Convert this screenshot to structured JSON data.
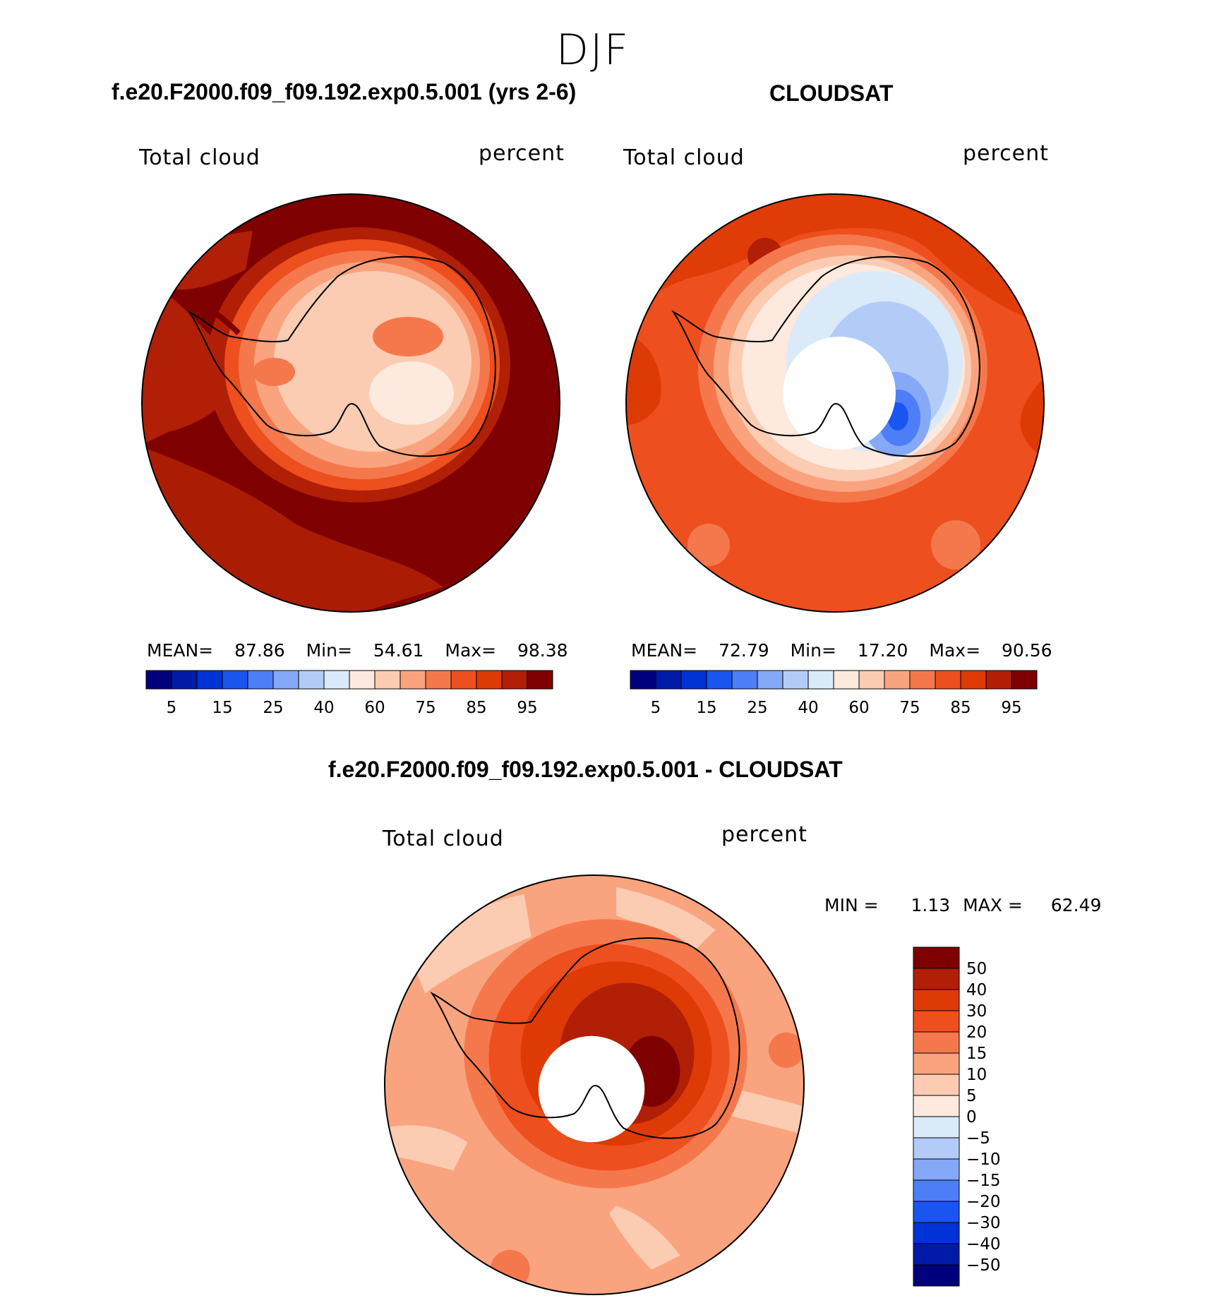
{
  "season": "DJF",
  "panels": [
    {
      "title": "f.e20.F2000.f09_f09.192.exp0.5.001 (yrs 2-6)",
      "variable": "Total cloud",
      "units": "percent",
      "stats": {
        "mean_label": "MEAN=",
        "mean": "87.86",
        "min_label": "Min=",
        "min": "54.61",
        "max_label": "Max=",
        "max": "98.38"
      },
      "colorbar_labels": [
        "5",
        "15",
        "25",
        "40",
        "60",
        "75",
        "85",
        "95"
      ]
    },
    {
      "title": "CLOUDSAT",
      "variable": "Total cloud",
      "units": "percent",
      "stats": {
        "mean_label": "MEAN=",
        "mean": "72.79",
        "min_label": "Min=",
        "min": "17.20",
        "max_label": "Max=",
        "max": "90.56"
      },
      "colorbar_labels": [
        "5",
        "15",
        "25",
        "40",
        "60",
        "75",
        "85",
        "95"
      ]
    }
  ],
  "difference": {
    "title": "f.e20.F2000.f09_f09.192.exp0.5.001 - CLOUDSAT",
    "variable": "Total cloud",
    "units": "percent",
    "stats": {
      "min_label": "MIN =",
      "min": "1.13",
      "max_label": "MAX =",
      "max": "62.49"
    },
    "colorbar_labels": [
      "50",
      "40",
      "30",
      "20",
      "15",
      "10",
      "5",
      "0",
      "−5",
      "−10",
      "−15",
      "−20",
      "−30",
      "−40",
      "−50"
    ]
  },
  "colors": {
    "abs_scale": [
      "#00007f",
      "#001aa8",
      "#0033d6",
      "#1a55f0",
      "#4d7ef7",
      "#85a8f7",
      "#b3ccf7",
      "#daeaf9",
      "#fde9dd",
      "#fbcbb2",
      "#f9a47e",
      "#f5784c",
      "#ee4f1e",
      "#dd3a06",
      "#b01f06",
      "#7f0000"
    ],
    "diff_scale": [
      "#7f0000",
      "#b01f06",
      "#dd3a06",
      "#ee4f1e",
      "#f5784c",
      "#f9a47e",
      "#fbcbb2",
      "#fde9dd",
      "#daeaf9",
      "#b3ccf7",
      "#85a8f7",
      "#4d7ef7",
      "#1a55f0",
      "#0033d6",
      "#001aa8",
      "#00007f"
    ]
  }
}
